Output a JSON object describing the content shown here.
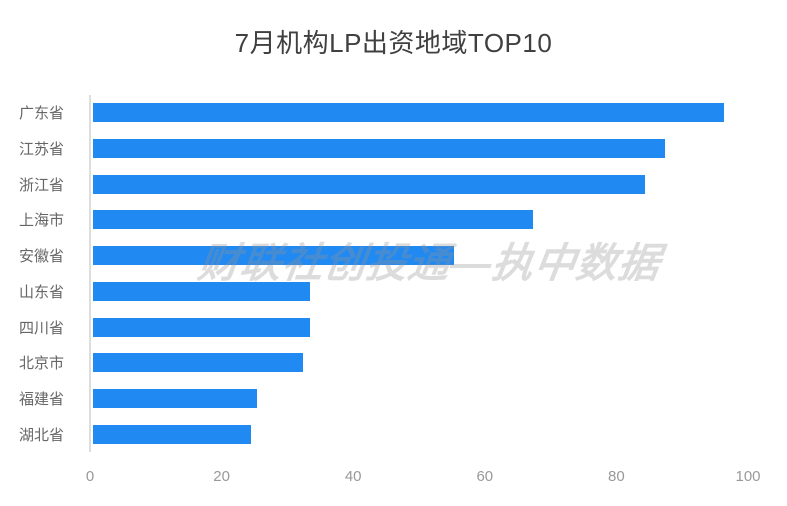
{
  "title": "7月机构LP出资地域TOP10",
  "watermark": "财联社创投通—执中数据",
  "colors": {
    "bar": "#2189f2",
    "title": "#404040",
    "category_label": "#666666",
    "tick_label": "#999999",
    "axis_line": "#dddddd",
    "watermark": "rgba(145,145,145,0.32)"
  },
  "chart_data": {
    "type": "bar",
    "orientation": "horizontal",
    "title": "7月机构LP出资地域TOP10",
    "categories": [
      "广东省",
      "江苏省",
      "浙江省",
      "上海市",
      "安徽省",
      "山东省",
      "四川省",
      "北京市",
      "福建省",
      "湖北省"
    ],
    "values": [
      96,
      87,
      84,
      67,
      55,
      33,
      33,
      32,
      25,
      24
    ],
    "xlabel": "",
    "ylabel": "",
    "xlim": [
      0,
      100
    ],
    "x_ticks": [
      0,
      20,
      40,
      60,
      80,
      100
    ],
    "grid": false,
    "legend": false,
    "watermark_text": "财联社创投通—执中数据"
  }
}
